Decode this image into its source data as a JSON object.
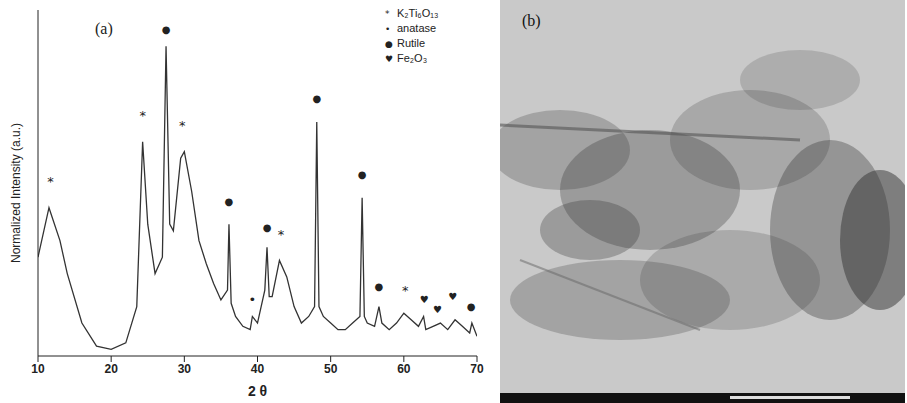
{
  "chart_data": {
    "type": "line",
    "panel": "(a)",
    "x_label": "2 θ",
    "y_label": "Normalized Intensity (a.u.)",
    "color": "#333333",
    "grid": false,
    "legend": "top-right",
    "tick_labels": "x",
    "xlim": [
      10,
      70
    ],
    "xticks": [
      10,
      20,
      30,
      40,
      50,
      60,
      70
    ],
    "ylim": [
      0,
      105
    ],
    "x": [
      10,
      11.5,
      13,
      14,
      16,
      18,
      20,
      22,
      23.5,
      24.3,
      25,
      26,
      27,
      27.5,
      28,
      28.5,
      29.5,
      30,
      31,
      32,
      33,
      34,
      35,
      35.9,
      36.1,
      36.4,
      37,
      38,
      39,
      39.3,
      40,
      41,
      41.3,
      41.6,
      42,
      43,
      44,
      45,
      46,
      47,
      47.8,
      48.1,
      48.4,
      49,
      50,
      51,
      52,
      53,
      54,
      54.3,
      54.6,
      55,
      56,
      56.6,
      57,
      58,
      59,
      60,
      61,
      62,
      62.7,
      63,
      64,
      65,
      66,
      67,
      68,
      69,
      69.3,
      70
    ],
    "values": [
      30,
      45,
      35,
      25,
      10,
      3,
      2,
      4,
      15,
      65,
      40,
      25,
      30,
      94,
      40,
      38,
      60,
      62,
      50,
      35,
      28,
      22,
      17,
      20,
      40,
      16,
      12,
      9,
      8,
      12,
      10,
      20,
      33,
      18,
      18,
      29,
      24,
      15,
      10,
      12,
      15,
      71,
      15,
      12,
      10,
      8,
      8,
      10,
      12,
      48,
      12,
      10,
      9,
      15,
      10,
      8,
      10,
      13,
      11,
      9,
      12,
      8,
      9,
      10,
      8,
      11,
      9,
      7,
      10,
      6
    ],
    "markers": [
      {
        "symbol": "*",
        "name": "K₂Ti₆O₁₃"
      },
      {
        "symbol": "•",
        "name": "anatase"
      },
      {
        "symbol": "●",
        "name": "Rutile"
      },
      {
        "symbol": "♥",
        "name": "Fe₂O₃"
      }
    ],
    "annotations": [
      {
        "x": 11.7,
        "y": 53,
        "text": "*"
      },
      {
        "x": 24.3,
        "y": 73,
        "text": "*"
      },
      {
        "x": 27.5,
        "y": 99,
        "text": "●"
      },
      {
        "x": 29.7,
        "y": 70,
        "text": "*"
      },
      {
        "x": 36.1,
        "y": 47,
        "text": "●"
      },
      {
        "x": 39.3,
        "y": 17,
        "text": "•"
      },
      {
        "x": 41.3,
        "y": 39,
        "text": "●"
      },
      {
        "x": 43.2,
        "y": 37,
        "text": "*"
      },
      {
        "x": 48.1,
        "y": 78,
        "text": "●"
      },
      {
        "x": 54.3,
        "y": 55,
        "text": "●"
      },
      {
        "x": 56.6,
        "y": 21,
        "text": "●"
      },
      {
        "x": 60.2,
        "y": 20,
        "text": "*"
      },
      {
        "x": 62.8,
        "y": 17,
        "text": "♥"
      },
      {
        "x": 64.6,
        "y": 14,
        "text": "♥"
      },
      {
        "x": 66.7,
        "y": 18,
        "text": "♥"
      },
      {
        "x": 69.2,
        "y": 15,
        "text": "●"
      }
    ]
  },
  "panel_b": {
    "label": "(b)"
  }
}
